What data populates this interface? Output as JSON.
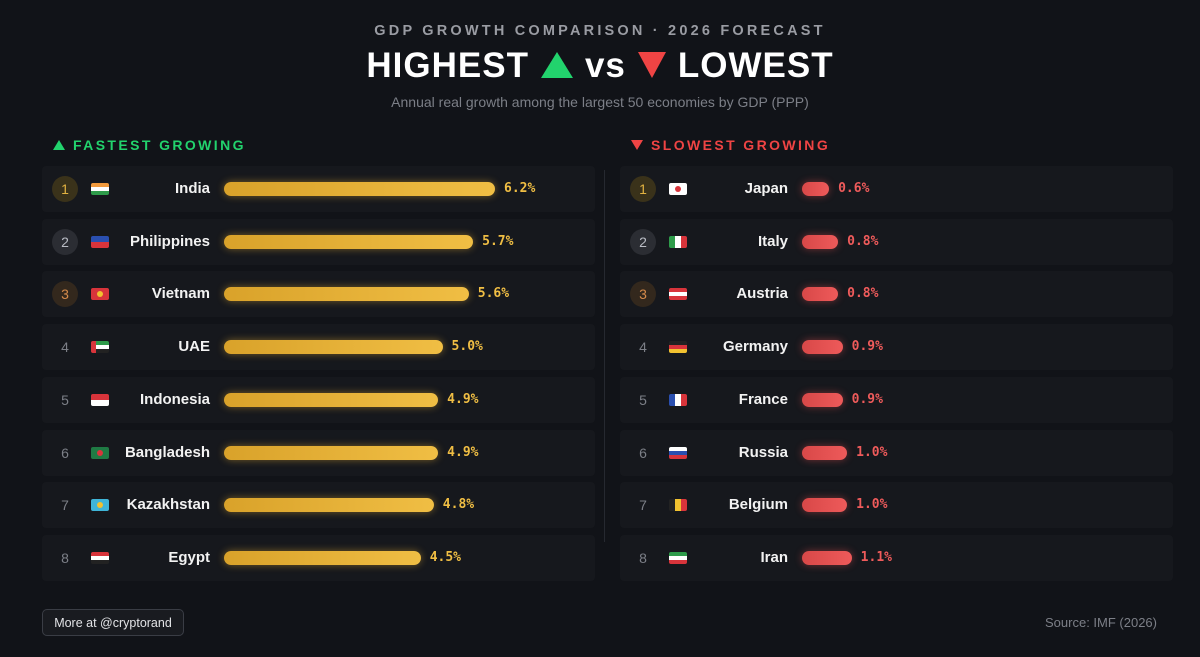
{
  "header": {
    "kicker": "GDP GROWTH COMPARISON · 2026 FORECAST",
    "title_left": "HIGHEST",
    "title_mid": "vs",
    "title_right": "LOWEST",
    "subtitle": "Annual real growth among the largest 50 economies by GDP (PPP)"
  },
  "sections": {
    "left_title": "FASTEST GROWING",
    "right_title": "SLOWEST GROWING"
  },
  "colors": {
    "accent_green": "#22d36d",
    "accent_red": "#ef4444",
    "bar_gold": "#f0be44",
    "bar_red": "#ee5a5a"
  },
  "chart_data": [
    {
      "type": "bar",
      "title": "FASTEST GROWING",
      "categories": [
        "India",
        "Philippines",
        "Vietnam",
        "UAE",
        "Indonesia",
        "Bangladesh",
        "Kazakhstan",
        "Egypt"
      ],
      "ranks": [
        "1",
        "2",
        "3",
        "4",
        "5",
        "6",
        "7",
        "8"
      ],
      "values": [
        6.2,
        5.7,
        5.6,
        5.0,
        4.9,
        4.9,
        4.8,
        4.5
      ],
      "labels": [
        "6.2%",
        "5.7%",
        "5.6%",
        "5.0%",
        "4.9%",
        "4.9%",
        "4.8%",
        "4.5%"
      ],
      "flags": [
        "india",
        "philippines",
        "vietnam",
        "uae",
        "indonesia",
        "bangladesh",
        "kazakhstan",
        "egypt"
      ]
    },
    {
      "type": "bar",
      "title": "SLOWEST GROWING",
      "categories": [
        "Japan",
        "Italy",
        "Austria",
        "Germany",
        "France",
        "Russia",
        "Belgium",
        "Iran"
      ],
      "ranks": [
        "1",
        "2",
        "3",
        "4",
        "5",
        "6",
        "7",
        "8"
      ],
      "values": [
        0.6,
        0.8,
        0.8,
        0.9,
        0.9,
        1.0,
        1.0,
        1.1
      ],
      "labels": [
        "0.6%",
        "0.8%",
        "0.8%",
        "0.9%",
        "0.9%",
        "1.0%",
        "1.0%",
        "1.1%"
      ],
      "flags": [
        "japan",
        "italy",
        "austria",
        "germany",
        "france",
        "russia",
        "belgium",
        "iran"
      ]
    }
  ],
  "footer": {
    "more_button": "More at @cryptorand",
    "source": "Source: IMF (2026)"
  }
}
